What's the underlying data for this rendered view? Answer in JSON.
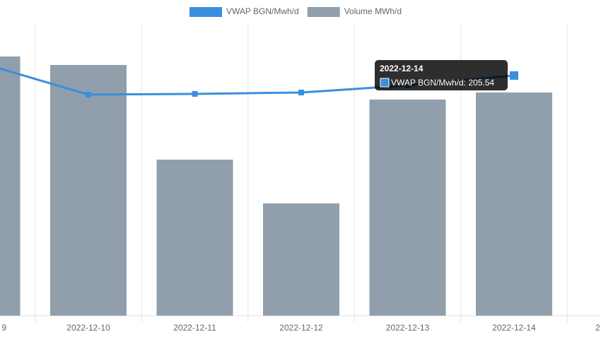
{
  "chart_data": {
    "type": "bar-line",
    "categories": [
      "9",
      "2022-12-10",
      "2022-12-11",
      "2022-12-12",
      "2022-12-13",
      "2022-12-14",
      "2"
    ],
    "series": [
      {
        "name": "VWAP BGN/Mwh/d",
        "type": "line",
        "axis": "y2",
        "color": "#3a8fdd",
        "values": [
          216,
          189.2,
          189.8,
          191,
          197,
          205.54,
          null
        ]
      },
      {
        "name": "Volume MWh/d",
        "type": "bar",
        "color": "#909fab",
        "values": [
          4454,
          4308,
          2682,
          1930,
          3714,
          3835,
          null
        ]
      }
    ],
    "ylim": [
      0,
      5000
    ],
    "y2lim": [
      0,
      249
    ],
    "legend": "top",
    "tooltip": {
      "title": "2022-12-14",
      "label": "VWAP BGN/Mwh/d: 205.54"
    }
  }
}
